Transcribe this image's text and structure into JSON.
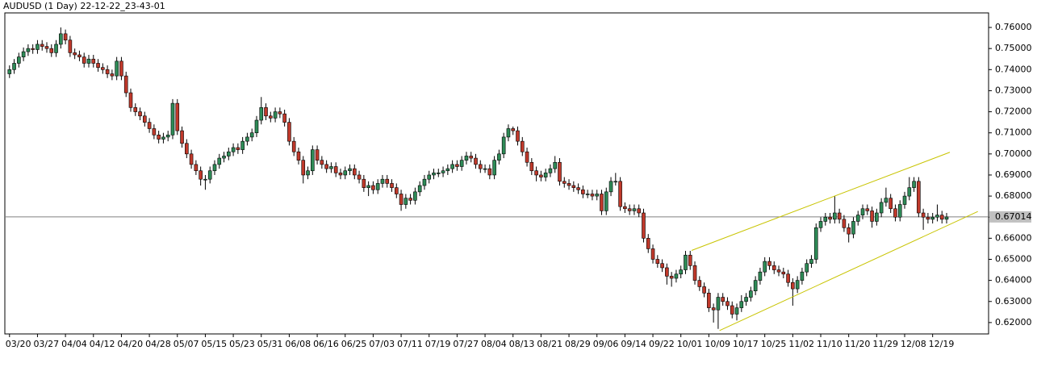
{
  "chart_data": {
    "type": "candlestick",
    "title": "AUDUSD (1 Day) 22-12-22_23-43-01",
    "bull_color": "#2e8b57",
    "bear_color": "#c0392b",
    "trendline_color": "#c8c400",
    "ylim": [
      0.6146,
      0.7669
    ],
    "yticks": [
      {
        "value": 0.62,
        "label": "0.62000"
      },
      {
        "value": 0.63,
        "label": "0.63000"
      },
      {
        "value": 0.64,
        "label": "0.64000"
      },
      {
        "value": 0.65,
        "label": "0.65000"
      },
      {
        "value": 0.66,
        "label": "0.66000"
      },
      {
        "value": 0.67,
        "label": "0.67000"
      },
      {
        "value": 0.68,
        "label": "0.68000"
      },
      {
        "value": 0.69,
        "label": "0.69000"
      },
      {
        "value": 0.7,
        "label": "0.70000"
      },
      {
        "value": 0.71,
        "label": "0.71000"
      },
      {
        "value": 0.72,
        "label": "0.72000"
      },
      {
        "value": 0.73,
        "label": "0.73000"
      },
      {
        "value": 0.74,
        "label": "0.74000"
      },
      {
        "value": 0.75,
        "label": "0.75000"
      },
      {
        "value": 0.76,
        "label": "0.76000"
      }
    ],
    "xlim": [
      -1,
      210
    ],
    "xticks": [
      {
        "value": 0,
        "label": "03/20"
      },
      {
        "value": 6,
        "label": "03/27"
      },
      {
        "value": 12,
        "label": "04/04"
      },
      {
        "value": 18,
        "label": "04/12"
      },
      {
        "value": 24,
        "label": "04/20"
      },
      {
        "value": 30,
        "label": "04/28"
      },
      {
        "value": 36,
        "label": "05/07"
      },
      {
        "value": 42,
        "label": "05/15"
      },
      {
        "value": 48,
        "label": "05/23"
      },
      {
        "value": 54,
        "label": "05/31"
      },
      {
        "value": 60,
        "label": "06/08"
      },
      {
        "value": 66,
        "label": "06/16"
      },
      {
        "value": 72,
        "label": "06/25"
      },
      {
        "value": 78,
        "label": "07/03"
      },
      {
        "value": 84,
        "label": "07/11"
      },
      {
        "value": 90,
        "label": "07/19"
      },
      {
        "value": 96,
        "label": "07/27"
      },
      {
        "value": 102,
        "label": "08/04"
      },
      {
        "value": 108,
        "label": "08/13"
      },
      {
        "value": 114,
        "label": "08/21"
      },
      {
        "value": 120,
        "label": "08/29"
      },
      {
        "value": 126,
        "label": "09/06"
      },
      {
        "value": 132,
        "label": "09/14"
      },
      {
        "value": 138,
        "label": "09/22"
      },
      {
        "value": 144,
        "label": "10/01"
      },
      {
        "value": 150,
        "label": "10/09"
      },
      {
        "value": 156,
        "label": "10/17"
      },
      {
        "value": 162,
        "label": "10/25"
      },
      {
        "value": 168,
        "label": "11/02"
      },
      {
        "value": 174,
        "label": "11/10"
      },
      {
        "value": 180,
        "label": "11/20"
      },
      {
        "value": 186,
        "label": "11/29"
      },
      {
        "value": 192,
        "label": "12/08"
      },
      {
        "value": 198,
        "label": "12/19"
      }
    ],
    "last_price": 0.67014,
    "trendlines": [
      [
        [
          146.3,
          0.6542
        ],
        [
          201.7,
          0.7008
        ]
      ],
      [
        [
          152.3,
          0.6162
        ],
        [
          207.7,
          0.6727
        ]
      ]
    ],
    "ohlc": [
      [
        0.738,
        0.742,
        0.736,
        0.74
      ],
      [
        0.74,
        0.745,
        0.738,
        0.743
      ],
      [
        0.743,
        0.748,
        0.741,
        0.746
      ],
      [
        0.746,
        0.7505,
        0.744,
        0.7485
      ],
      [
        0.7485,
        0.752,
        0.7465,
        0.75
      ],
      [
        0.75,
        0.752,
        0.7475,
        0.7495
      ],
      [
        0.7495,
        0.754,
        0.7475,
        0.752
      ],
      [
        0.752,
        0.754,
        0.749,
        0.751
      ],
      [
        0.751,
        0.753,
        0.748,
        0.75
      ],
      [
        0.75,
        0.752,
        0.746,
        0.748
      ],
      [
        0.748,
        0.754,
        0.746,
        0.752
      ],
      [
        0.752,
        0.76,
        0.75,
        0.757
      ],
      [
        0.757,
        0.759,
        0.752,
        0.754
      ],
      [
        0.754,
        0.756,
        0.746,
        0.748
      ],
      [
        0.748,
        0.75,
        0.745,
        0.747
      ],
      [
        0.747,
        0.749,
        0.744,
        0.746
      ],
      [
        0.746,
        0.748,
        0.741,
        0.743
      ],
      [
        0.743,
        0.747,
        0.741,
        0.745
      ],
      [
        0.745,
        0.747,
        0.741,
        0.743
      ],
      [
        0.743,
        0.745,
        0.739,
        0.741
      ],
      [
        0.741,
        0.743,
        0.738,
        0.74
      ],
      [
        0.74,
        0.742,
        0.736,
        0.738
      ],
      [
        0.738,
        0.74,
        0.735,
        0.737
      ],
      [
        0.737,
        0.746,
        0.735,
        0.744
      ],
      [
        0.744,
        0.746,
        0.735,
        0.737
      ],
      [
        0.737,
        0.739,
        0.727,
        0.729
      ],
      [
        0.729,
        0.731,
        0.72,
        0.722
      ],
      [
        0.722,
        0.724,
        0.718,
        0.72
      ],
      [
        0.72,
        0.722,
        0.716,
        0.718
      ],
      [
        0.718,
        0.72,
        0.713,
        0.715
      ],
      [
        0.715,
        0.717,
        0.71,
        0.712
      ],
      [
        0.712,
        0.714,
        0.707,
        0.709
      ],
      [
        0.709,
        0.711,
        0.705,
        0.707
      ],
      [
        0.707,
        0.71,
        0.705,
        0.708
      ],
      [
        0.708,
        0.711,
        0.706,
        0.709
      ],
      [
        0.709,
        0.726,
        0.707,
        0.724
      ],
      [
        0.724,
        0.726,
        0.709,
        0.711
      ],
      [
        0.711,
        0.713,
        0.703,
        0.705
      ],
      [
        0.705,
        0.707,
        0.698,
        0.7
      ],
      [
        0.7,
        0.702,
        0.693,
        0.695
      ],
      [
        0.695,
        0.697,
        0.69,
        0.692
      ],
      [
        0.692,
        0.694,
        0.685,
        0.688
      ],
      [
        0.688,
        0.69,
        0.683,
        0.688
      ],
      [
        0.688,
        0.694,
        0.686,
        0.692
      ],
      [
        0.692,
        0.697,
        0.69,
        0.695
      ],
      [
        0.695,
        0.7,
        0.693,
        0.698
      ],
      [
        0.698,
        0.701,
        0.696,
        0.699
      ],
      [
        0.699,
        0.703,
        0.697,
        0.701
      ],
      [
        0.701,
        0.705,
        0.699,
        0.703
      ],
      [
        0.703,
        0.705,
        0.7,
        0.702
      ],
      [
        0.702,
        0.708,
        0.7,
        0.706
      ],
      [
        0.706,
        0.71,
        0.704,
        0.708
      ],
      [
        0.708,
        0.712,
        0.706,
        0.71
      ],
      [
        0.71,
        0.718,
        0.708,
        0.716
      ],
      [
        0.716,
        0.727,
        0.714,
        0.722
      ],
      [
        0.722,
        0.724,
        0.716,
        0.718
      ],
      [
        0.718,
        0.72,
        0.715,
        0.717
      ],
      [
        0.717,
        0.722,
        0.715,
        0.72
      ],
      [
        0.72,
        0.722,
        0.717,
        0.719
      ],
      [
        0.719,
        0.721,
        0.713,
        0.715
      ],
      [
        0.715,
        0.717,
        0.704,
        0.706
      ],
      [
        0.706,
        0.708,
        0.699,
        0.701
      ],
      [
        0.701,
        0.703,
        0.695,
        0.697
      ],
      [
        0.697,
        0.699,
        0.686,
        0.69
      ],
      [
        0.69,
        0.694,
        0.688,
        0.692
      ],
      [
        0.692,
        0.704,
        0.69,
        0.702
      ],
      [
        0.702,
        0.704,
        0.695,
        0.697
      ],
      [
        0.697,
        0.699,
        0.693,
        0.695
      ],
      [
        0.695,
        0.697,
        0.691,
        0.693
      ],
      [
        0.693,
        0.696,
        0.691,
        0.694
      ],
      [
        0.694,
        0.696,
        0.689,
        0.691
      ],
      [
        0.691,
        0.693,
        0.688,
        0.69
      ],
      [
        0.69,
        0.694,
        0.688,
        0.692
      ],
      [
        0.692,
        0.695,
        0.69,
        0.693
      ],
      [
        0.693,
        0.695,
        0.688,
        0.69
      ],
      [
        0.69,
        0.692,
        0.686,
        0.688
      ],
      [
        0.688,
        0.69,
        0.682,
        0.684
      ],
      [
        0.684,
        0.687,
        0.68,
        0.685
      ],
      [
        0.685,
        0.687,
        0.681,
        0.683
      ],
      [
        0.683,
        0.688,
        0.681,
        0.686
      ],
      [
        0.686,
        0.69,
        0.684,
        0.688
      ],
      [
        0.688,
        0.69,
        0.684,
        0.686
      ],
      [
        0.686,
        0.688,
        0.682,
        0.684
      ],
      [
        0.684,
        0.686,
        0.679,
        0.681
      ],
      [
        0.681,
        0.683,
        0.673,
        0.676
      ],
      [
        0.676,
        0.681,
        0.674,
        0.679
      ],
      [
        0.679,
        0.681,
        0.676,
        0.678
      ],
      [
        0.678,
        0.684,
        0.676,
        0.682
      ],
      [
        0.682,
        0.687,
        0.68,
        0.685
      ],
      [
        0.685,
        0.69,
        0.683,
        0.688
      ],
      [
        0.688,
        0.692,
        0.686,
        0.69
      ],
      [
        0.69,
        0.693,
        0.688,
        0.691
      ],
      [
        0.691,
        0.693,
        0.689,
        0.691
      ],
      [
        0.691,
        0.694,
        0.689,
        0.692
      ],
      [
        0.692,
        0.695,
        0.69,
        0.693
      ],
      [
        0.693,
        0.697,
        0.691,
        0.695
      ],
      [
        0.695,
        0.697,
        0.692,
        0.694
      ],
      [
        0.694,
        0.699,
        0.692,
        0.697
      ],
      [
        0.697,
        0.701,
        0.695,
        0.699
      ],
      [
        0.699,
        0.701,
        0.696,
        0.698
      ],
      [
        0.698,
        0.7,
        0.693,
        0.695
      ],
      [
        0.695,
        0.697,
        0.691,
        0.693
      ],
      [
        0.693,
        0.695,
        0.691,
        0.693
      ],
      [
        0.693,
        0.695,
        0.688,
        0.69
      ],
      [
        0.69,
        0.699,
        0.688,
        0.697
      ],
      [
        0.697,
        0.702,
        0.695,
        0.7
      ],
      [
        0.7,
        0.71,
        0.698,
        0.708
      ],
      [
        0.708,
        0.714,
        0.706,
        0.712
      ],
      [
        0.712,
        0.713,
        0.709,
        0.711
      ],
      [
        0.711,
        0.713,
        0.704,
        0.706
      ],
      [
        0.706,
        0.708,
        0.699,
        0.701
      ],
      [
        0.701,
        0.703,
        0.694,
        0.696
      ],
      [
        0.696,
        0.698,
        0.69,
        0.692
      ],
      [
        0.692,
        0.694,
        0.687,
        0.69
      ],
      [
        0.69,
        0.692,
        0.687,
        0.689
      ],
      [
        0.689,
        0.693,
        0.687,
        0.691
      ],
      [
        0.691,
        0.695,
        0.689,
        0.693
      ],
      [
        0.693,
        0.699,
        0.691,
        0.696
      ],
      [
        0.696,
        0.698,
        0.685,
        0.687
      ],
      [
        0.687,
        0.689,
        0.684,
        0.686
      ],
      [
        0.686,
        0.688,
        0.683,
        0.685
      ],
      [
        0.685,
        0.687,
        0.682,
        0.684
      ],
      [
        0.684,
        0.686,
        0.681,
        0.683
      ],
      [
        0.683,
        0.685,
        0.679,
        0.681
      ],
      [
        0.681,
        0.683,
        0.679,
        0.681
      ],
      [
        0.681,
        0.683,
        0.678,
        0.68
      ],
      [
        0.68,
        0.683,
        0.678,
        0.681
      ],
      [
        0.681,
        0.683,
        0.671,
        0.673
      ],
      [
        0.673,
        0.684,
        0.671,
        0.682
      ],
      [
        0.682,
        0.689,
        0.68,
        0.687
      ],
      [
        0.687,
        0.691,
        0.685,
        0.687
      ],
      [
        0.687,
        0.689,
        0.673,
        0.675
      ],
      [
        0.675,
        0.677,
        0.672,
        0.674
      ],
      [
        0.674,
        0.676,
        0.671,
        0.673
      ],
      [
        0.673,
        0.676,
        0.671,
        0.674
      ],
      [
        0.674,
        0.676,
        0.67,
        0.672
      ],
      [
        0.672,
        0.674,
        0.658,
        0.66
      ],
      [
        0.66,
        0.662,
        0.653,
        0.655
      ],
      [
        0.655,
        0.657,
        0.648,
        0.65
      ],
      [
        0.65,
        0.652,
        0.646,
        0.648
      ],
      [
        0.648,
        0.65,
        0.644,
        0.646
      ],
      [
        0.646,
        0.648,
        0.638,
        0.642
      ],
      [
        0.642,
        0.644,
        0.637,
        0.641
      ],
      [
        0.641,
        0.645,
        0.639,
        0.643
      ],
      [
        0.643,
        0.647,
        0.641,
        0.645
      ],
      [
        0.645,
        0.654,
        0.643,
        0.652
      ],
      [
        0.652,
        0.654,
        0.645,
        0.647
      ],
      [
        0.647,
        0.649,
        0.638,
        0.64
      ],
      [
        0.64,
        0.642,
        0.635,
        0.637
      ],
      [
        0.637,
        0.639,
        0.632,
        0.634
      ],
      [
        0.634,
        0.636,
        0.625,
        0.627
      ],
      [
        0.627,
        0.629,
        0.62,
        0.626
      ],
      [
        0.626,
        0.634,
        0.617,
        0.632
      ],
      [
        0.632,
        0.634,
        0.628,
        0.63
      ],
      [
        0.63,
        0.632,
        0.626,
        0.628
      ],
      [
        0.628,
        0.63,
        0.622,
        0.624
      ],
      [
        0.624,
        0.629,
        0.621,
        0.627
      ],
      [
        0.627,
        0.633,
        0.625,
        0.63
      ],
      [
        0.63,
        0.634,
        0.628,
        0.632
      ],
      [
        0.632,
        0.637,
        0.63,
        0.635
      ],
      [
        0.635,
        0.642,
        0.633,
        0.64
      ],
      [
        0.64,
        0.646,
        0.638,
        0.644
      ],
      [
        0.644,
        0.651,
        0.642,
        0.649
      ],
      [
        0.649,
        0.651,
        0.645,
        0.647
      ],
      [
        0.647,
        0.649,
        0.643,
        0.645
      ],
      [
        0.645,
        0.647,
        0.642,
        0.644
      ],
      [
        0.644,
        0.646,
        0.641,
        0.643
      ],
      [
        0.643,
        0.645,
        0.637,
        0.639
      ],
      [
        0.639,
        0.641,
        0.628,
        0.636
      ],
      [
        0.636,
        0.642,
        0.634,
        0.64
      ],
      [
        0.64,
        0.646,
        0.638,
        0.644
      ],
      [
        0.644,
        0.65,
        0.642,
        0.648
      ],
      [
        0.648,
        0.652,
        0.646,
        0.65
      ],
      [
        0.65,
        0.667,
        0.648,
        0.665
      ],
      [
        0.665,
        0.67,
        0.663,
        0.668
      ],
      [
        0.668,
        0.672,
        0.666,
        0.67
      ],
      [
        0.67,
        0.672,
        0.667,
        0.669
      ],
      [
        0.669,
        0.68,
        0.667,
        0.672
      ],
      [
        0.672,
        0.674,
        0.667,
        0.669
      ],
      [
        0.669,
        0.671,
        0.663,
        0.665
      ],
      [
        0.665,
        0.667,
        0.658,
        0.662
      ],
      [
        0.662,
        0.67,
        0.66,
        0.668
      ],
      [
        0.668,
        0.673,
        0.666,
        0.671
      ],
      [
        0.671,
        0.676,
        0.669,
        0.674
      ],
      [
        0.674,
        0.676,
        0.671,
        0.673
      ],
      [
        0.673,
        0.675,
        0.665,
        0.668
      ],
      [
        0.668,
        0.674,
        0.666,
        0.672
      ],
      [
        0.672,
        0.679,
        0.67,
        0.677
      ],
      [
        0.677,
        0.684,
        0.675,
        0.679
      ],
      [
        0.679,
        0.681,
        0.672,
        0.674
      ],
      [
        0.674,
        0.676,
        0.668,
        0.67
      ],
      [
        0.67,
        0.678,
        0.668,
        0.676
      ],
      [
        0.676,
        0.682,
        0.674,
        0.68
      ],
      [
        0.68,
        0.689,
        0.678,
        0.684
      ],
      [
        0.684,
        0.689,
        0.682,
        0.687
      ],
      [
        0.687,
        0.689,
        0.67,
        0.672
      ],
      [
        0.672,
        0.674,
        0.664,
        0.67
      ],
      [
        0.67,
        0.672,
        0.667,
        0.669
      ],
      [
        0.669,
        0.672,
        0.667,
        0.67
      ],
      [
        0.67,
        0.676,
        0.668,
        0.671
      ],
      [
        0.671,
        0.673,
        0.667,
        0.669
      ],
      [
        0.669,
        0.672,
        0.667,
        0.6701
      ]
    ]
  }
}
